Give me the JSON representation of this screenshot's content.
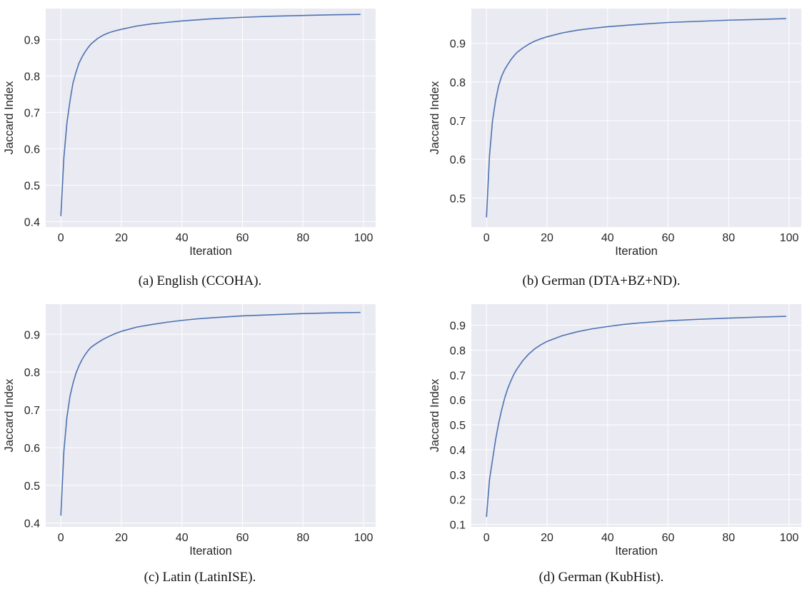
{
  "theme": {
    "plot_bg": "#eaeaf2",
    "grid": "#ffffff",
    "line": "#4c72b0",
    "text": "#262626"
  },
  "chart_data": [
    {
      "id": "a",
      "type": "line",
      "caption": "(a) English (CCOHA).",
      "xlabel": "Iteration",
      "ylabel": "Jaccard Index",
      "xlim": [
        -5,
        104
      ],
      "ylim": [
        0.385,
        0.985
      ],
      "xticks": [
        0,
        20,
        40,
        60,
        80,
        100
      ],
      "yticks": [
        0.4,
        0.5,
        0.6,
        0.7,
        0.8,
        0.9
      ],
      "grid": true,
      "series": [
        {
          "x": [
            0,
            1,
            2,
            3,
            4,
            5,
            6,
            7,
            8,
            9,
            10,
            12,
            14,
            16,
            18,
            20,
            25,
            30,
            35,
            40,
            45,
            50,
            60,
            70,
            80,
            90,
            99
          ],
          "y": [
            0.415,
            0.575,
            0.67,
            0.73,
            0.78,
            0.81,
            0.835,
            0.852,
            0.866,
            0.878,
            0.888,
            0.902,
            0.912,
            0.919,
            0.924,
            0.928,
            0.937,
            0.943,
            0.947,
            0.951,
            0.954,
            0.957,
            0.961,
            0.964,
            0.966,
            0.968,
            0.969
          ]
        }
      ]
    },
    {
      "id": "b",
      "type": "line",
      "caption": "(b) German (DTA+BZ+ND).",
      "xlabel": "Iteration",
      "ylabel": "Jaccard Index",
      "xlim": [
        -5,
        104
      ],
      "ylim": [
        0.425,
        0.99
      ],
      "xticks": [
        0,
        20,
        40,
        60,
        80,
        100
      ],
      "yticks": [
        0.5,
        0.6,
        0.7,
        0.8,
        0.9
      ],
      "grid": true,
      "series": [
        {
          "x": [
            0,
            1,
            2,
            3,
            4,
            5,
            6,
            7,
            8,
            9,
            10,
            12,
            14,
            16,
            18,
            20,
            25,
            30,
            35,
            40,
            45,
            50,
            60,
            70,
            80,
            90,
            99
          ],
          "y": [
            0.45,
            0.61,
            0.7,
            0.752,
            0.79,
            0.815,
            0.832,
            0.845,
            0.857,
            0.867,
            0.876,
            0.888,
            0.898,
            0.906,
            0.912,
            0.917,
            0.927,
            0.934,
            0.939,
            0.943,
            0.946,
            0.949,
            0.954,
            0.957,
            0.96,
            0.962,
            0.964
          ]
        }
      ]
    },
    {
      "id": "c",
      "type": "line",
      "caption": "(c) Latin (LatinISE).",
      "xlabel": "Iteration",
      "ylabel": "Jaccard Index",
      "xlim": [
        -5,
        104
      ],
      "ylim": [
        0.39,
        0.98
      ],
      "xticks": [
        0,
        20,
        40,
        60,
        80,
        100
      ],
      "yticks": [
        0.4,
        0.5,
        0.6,
        0.7,
        0.8,
        0.9
      ],
      "grid": true,
      "series": [
        {
          "x": [
            0,
            1,
            2,
            3,
            4,
            5,
            6,
            7,
            8,
            9,
            10,
            12,
            14,
            16,
            18,
            20,
            25,
            30,
            35,
            40,
            45,
            50,
            60,
            70,
            80,
            90,
            99
          ],
          "y": [
            0.42,
            0.59,
            0.68,
            0.735,
            0.77,
            0.797,
            0.817,
            0.833,
            0.846,
            0.857,
            0.866,
            0.877,
            0.887,
            0.895,
            0.902,
            0.908,
            0.919,
            0.926,
            0.932,
            0.937,
            0.941,
            0.944,
            0.949,
            0.952,
            0.955,
            0.957,
            0.958
          ]
        }
      ]
    },
    {
      "id": "d",
      "type": "line",
      "caption": "(d) German (KubHist).",
      "xlabel": "Iteration",
      "ylabel": "Jaccard Index",
      "xlim": [
        -5,
        104
      ],
      "ylim": [
        0.09,
        0.985
      ],
      "xticks": [
        0,
        20,
        40,
        60,
        80,
        100
      ],
      "yticks": [
        0.1,
        0.2,
        0.3,
        0.4,
        0.5,
        0.6,
        0.7,
        0.8,
        0.9
      ],
      "grid": true,
      "series": [
        {
          "x": [
            0,
            1,
            2,
            3,
            4,
            5,
            6,
            7,
            8,
            9,
            10,
            12,
            14,
            16,
            18,
            20,
            25,
            30,
            35,
            40,
            45,
            50,
            60,
            70,
            80,
            90,
            99
          ],
          "y": [
            0.13,
            0.28,
            0.36,
            0.44,
            0.505,
            0.56,
            0.607,
            0.645,
            0.675,
            0.702,
            0.723,
            0.758,
            0.785,
            0.806,
            0.822,
            0.835,
            0.858,
            0.874,
            0.886,
            0.895,
            0.903,
            0.909,
            0.918,
            0.924,
            0.929,
            0.933,
            0.936
          ]
        }
      ]
    }
  ]
}
